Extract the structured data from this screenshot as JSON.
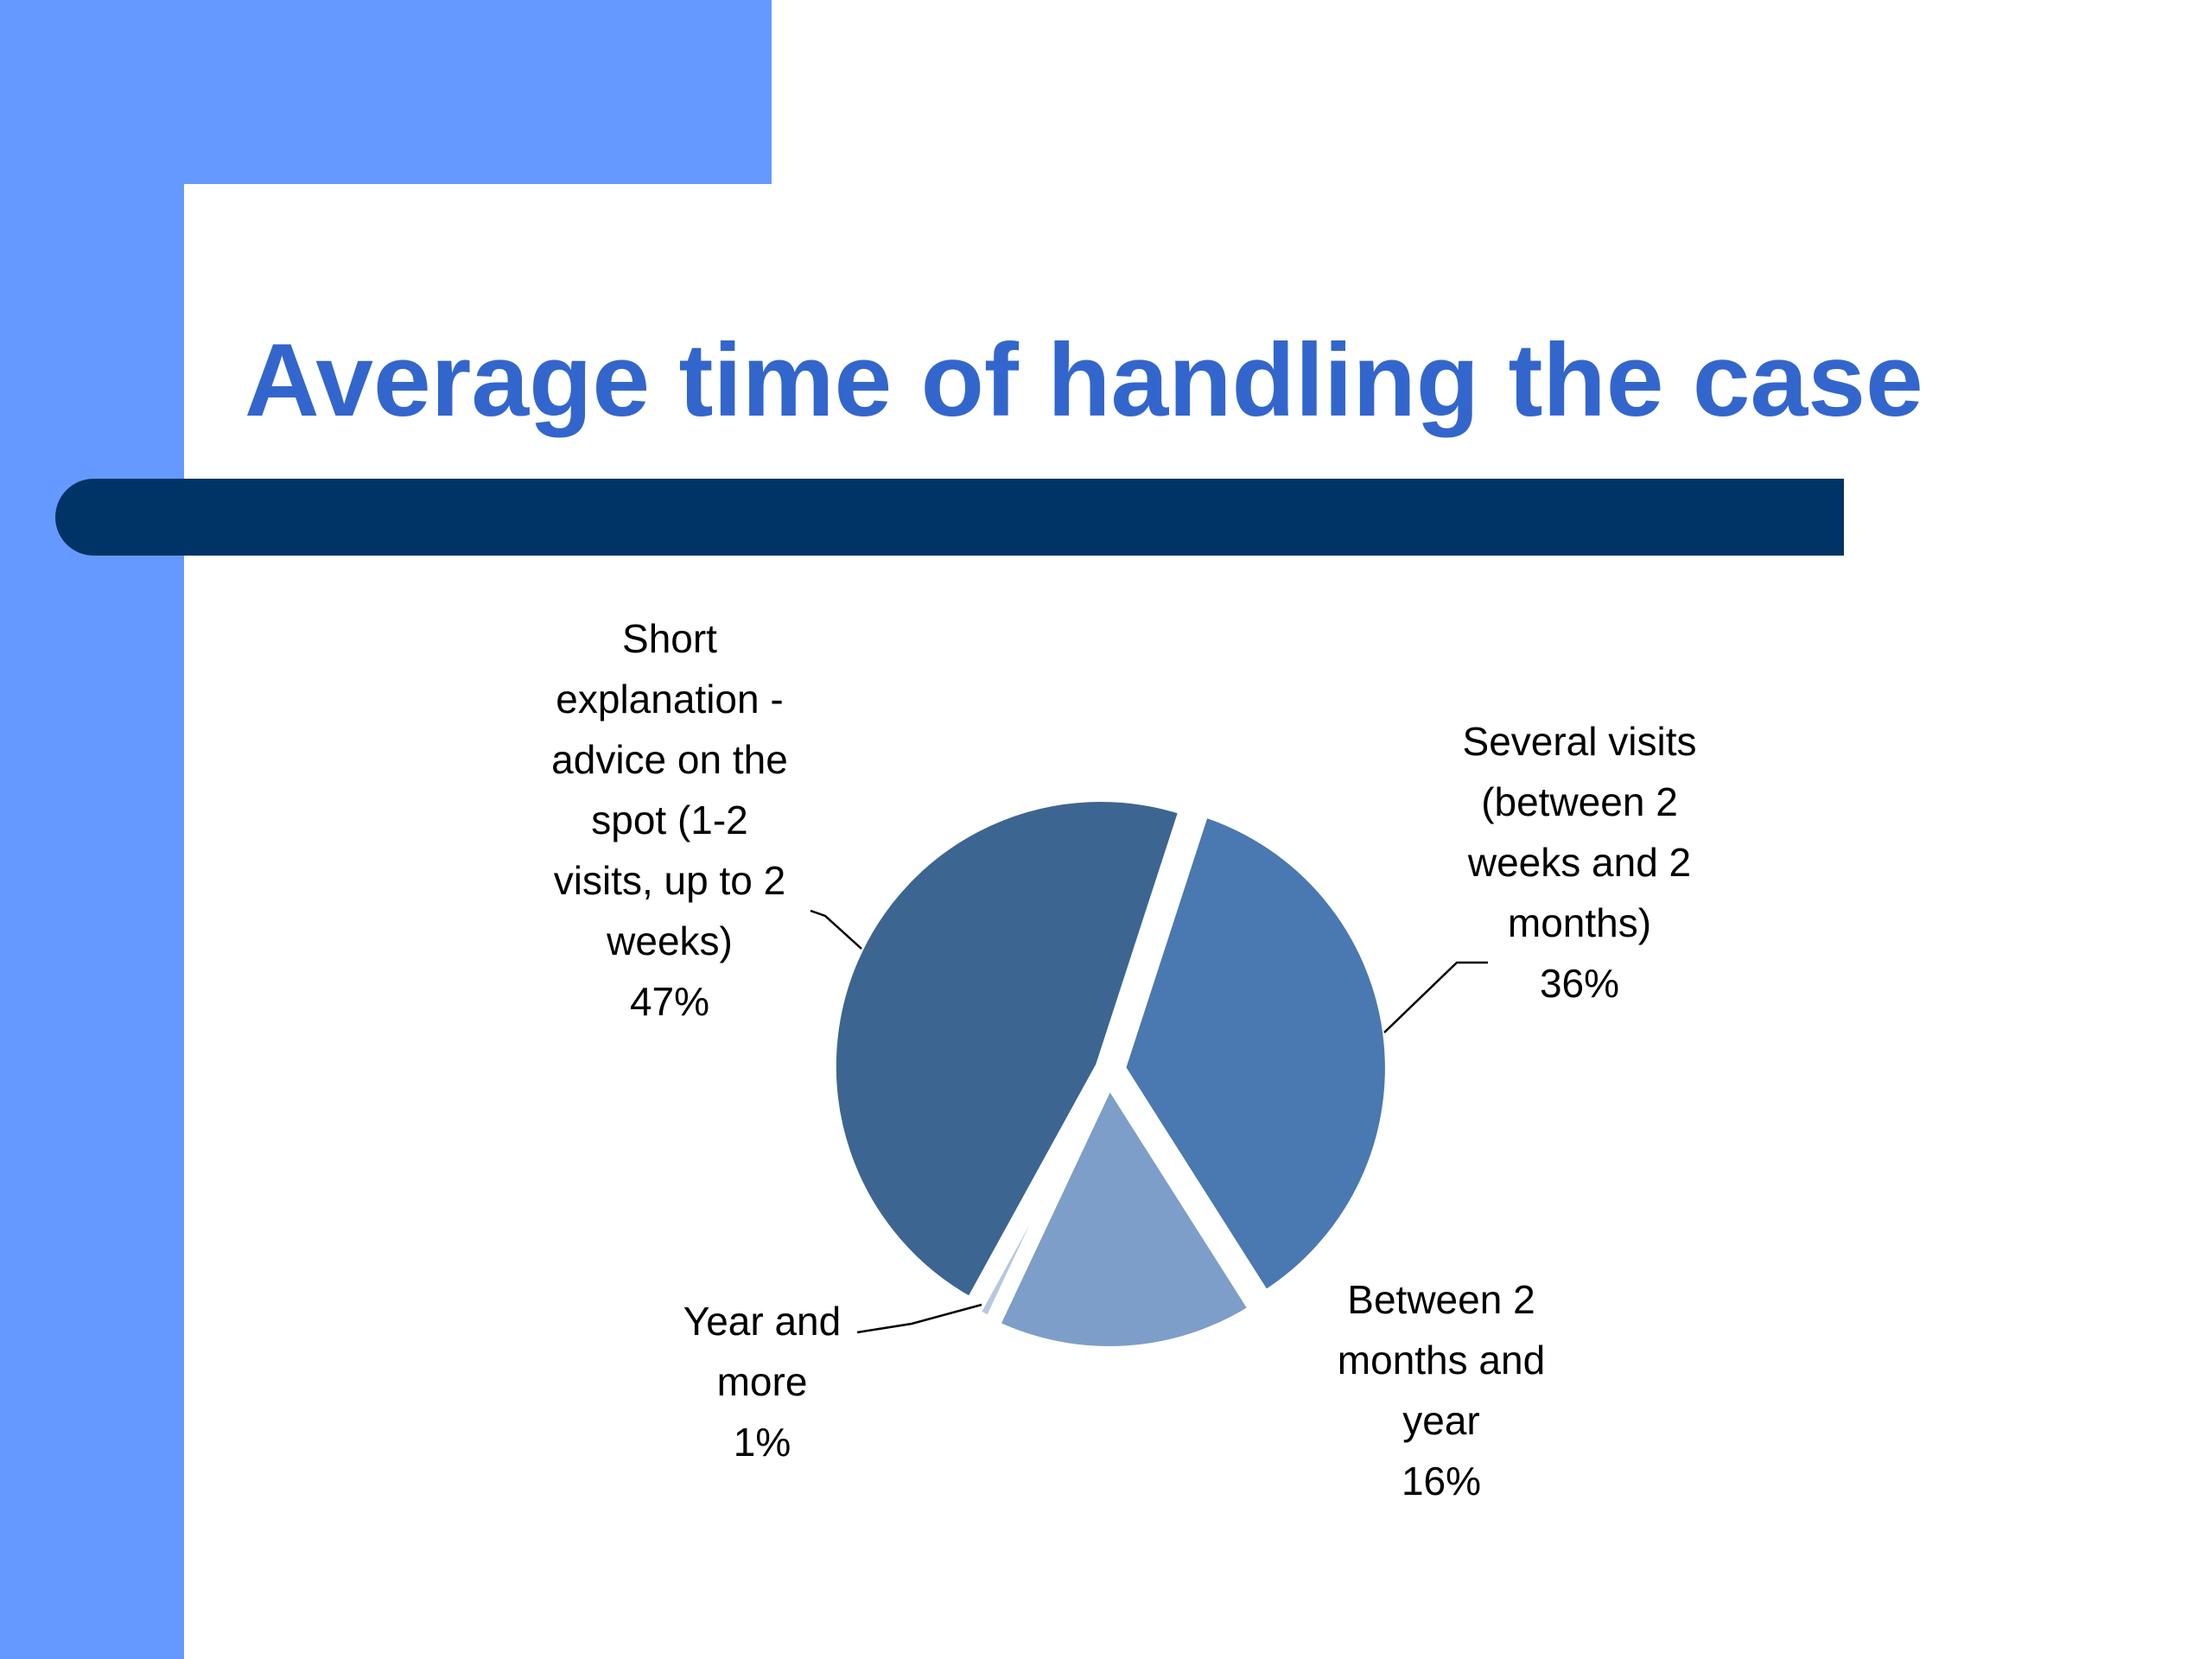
{
  "slide": {
    "title": "Average time of handling the case",
    "colors": {
      "band": "#6699ff",
      "title_text": "#3366cc",
      "title_bar": "#003366",
      "background": "#ffffff"
    }
  },
  "chart_data": {
    "type": "pie",
    "title": "",
    "slices": [
      {
        "label": "Several visits (between 2 weeks and 2 months)",
        "label_lines": [
          "Several visits",
          "(between  2",
          "weeks and 2",
          "months)"
        ],
        "value": 36,
        "value_label": "36%",
        "color": "#4a78b0"
      },
      {
        "label": "Between 2 months and year",
        "label_lines": [
          "Between  2",
          "months and",
          "year"
        ],
        "value": 16,
        "value_label": "16%",
        "color": "#7d9ec9"
      },
      {
        "label": "Year and more",
        "label_lines": [
          "Year and",
          "more"
        ],
        "value": 1,
        "value_label": "1%",
        "color": "#b8c7e0"
      },
      {
        "label": "Short explanation - advice on the spot (1-2 visits, up to 2 weeks)",
        "label_lines": [
          "Short",
          "explanation -",
          "advice on the",
          "spot (1-2",
          "visits, up to 2",
          "weeks)"
        ],
        "value": 47,
        "value_label": "47%",
        "color": "#3d6592"
      }
    ],
    "legend": "none",
    "data_labels": "outside with leader lines"
  }
}
